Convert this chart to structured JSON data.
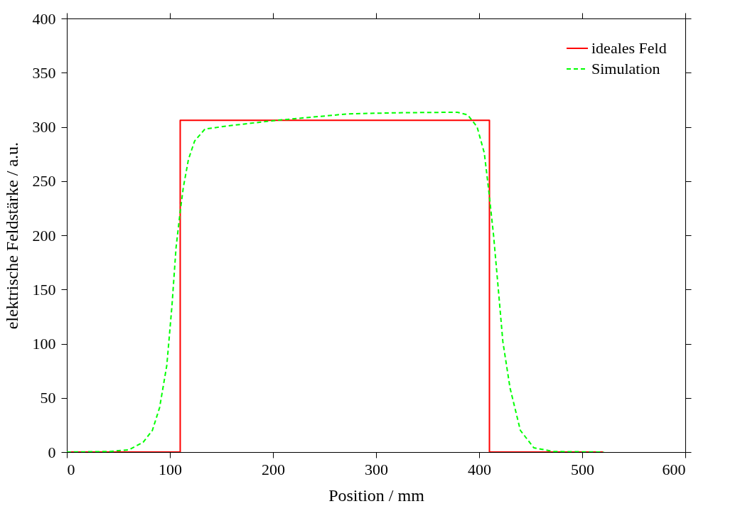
{
  "chart_data": {
    "type": "line",
    "xlabel": "Position / mm",
    "ylabel": "elektrische Feldstärke / a.u.",
    "xlim": [
      0,
      600
    ],
    "xticks": [
      0,
      100,
      200,
      300,
      400,
      500,
      600
    ],
    "ylim": [
      0,
      400
    ],
    "yticks": [
      0,
      50,
      100,
      150,
      200,
      250,
      300,
      350,
      400
    ],
    "grid": false,
    "legend": "top right",
    "series": [
      {
        "name": "ideales Feld",
        "color": "#ff0000",
        "line_style": "solid",
        "x": [
          0,
          110,
          110,
          410,
          410,
          520
        ],
        "values": [
          0,
          0,
          306,
          306,
          0,
          0
        ]
      },
      {
        "name": "Simulation",
        "color": "#00ff00",
        "line_style": "dashed",
        "x": [
          0,
          41,
          60,
          74,
          83,
          90,
          97,
          102,
          106,
          110,
          113,
          118,
          124,
          134,
          157,
          203,
          273,
          319,
          379,
          389,
          398,
          405,
          409,
          414,
          419,
          423,
          430,
          440,
          453,
          472,
          521
        ],
        "values": [
          0,
          0.5,
          2,
          9,
          20,
          41,
          80,
          135,
          189,
          222,
          244,
          270,
          287,
          298,
          301,
          306,
          312,
          313,
          313.5,
          311,
          300,
          276,
          244,
          200,
          146,
          102,
          59,
          20,
          4,
          0.5,
          0
        ]
      }
    ]
  }
}
